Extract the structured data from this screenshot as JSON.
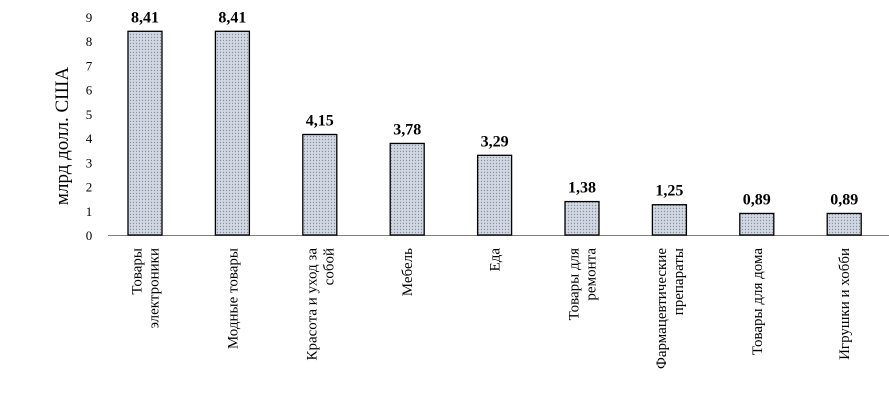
{
  "chart_data": {
    "type": "bar",
    "ylabel": "млрд долл. США",
    "ylim": [
      0,
      9
    ],
    "yticks": [
      0,
      1,
      2,
      3,
      4,
      5,
      6,
      7,
      8,
      9
    ],
    "grid": false,
    "legend": "none",
    "categories": [
      [
        "Товары",
        "электроники"
      ],
      [
        "Модные товары"
      ],
      [
        "Красота и уход за",
        "собой"
      ],
      [
        "Мебель"
      ],
      [
        "Еда"
      ],
      [
        "Товары для",
        "ремонта"
      ],
      [
        "Фармацевтические",
        "препараты"
      ],
      [
        "Товары для дома"
      ],
      [
        "Игрушки и хобби"
      ]
    ],
    "values": [
      8.41,
      8.41,
      4.15,
      3.78,
      3.29,
      1.38,
      1.25,
      0.89,
      0.89
    ],
    "data_labels": [
      "8,41",
      "8,41",
      "4,15",
      "3,78",
      "3,29",
      "1,38",
      "1,25",
      "0,89",
      "0,89"
    ],
    "colors": {
      "bar_fill": "#d3d9e3",
      "bar_dots": "#8a93a6",
      "bar_stroke": "#000000",
      "axis": "#7f7f7f",
      "text": "#000000"
    }
  }
}
